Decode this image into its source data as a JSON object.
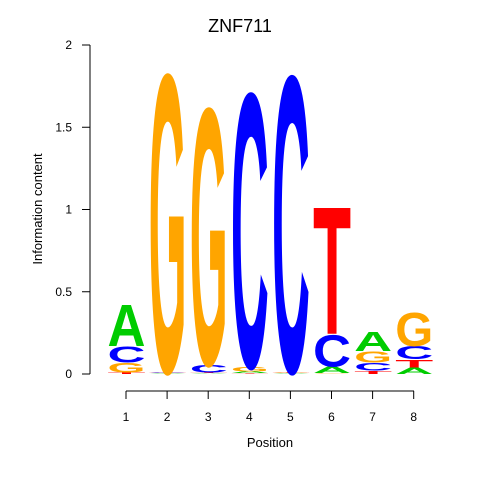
{
  "chart_data": {
    "type": "sequence-logo",
    "title": "ZNF711",
    "xlabel": "Position",
    "ylabel": "Information content",
    "ylim": [
      0,
      2
    ],
    "y_ticks": [
      "0",
      "0.5",
      "1",
      "1.5",
      "2"
    ],
    "x_ticks": [
      "1",
      "2",
      "3",
      "4",
      "5",
      "6",
      "7",
      "8"
    ],
    "colors": {
      "A": "#00cc00",
      "C": "#0000ff",
      "G": "#ffa500",
      "T": "#ff0000"
    },
    "positions": [
      {
        "position": "1",
        "letters": [
          {
            "base": "T",
            "height": 0.01
          },
          {
            "base": "G",
            "height": 0.06
          },
          {
            "base": "C",
            "height": 0.1
          },
          {
            "base": "A",
            "height": 0.26
          }
        ]
      },
      {
        "position": "2",
        "letters": [
          {
            "base": "A",
            "height": 0.005
          },
          {
            "base": "C",
            "height": 0.005
          },
          {
            "base": "T",
            "height": 0.005
          },
          {
            "base": "G",
            "height": 1.87
          }
        ]
      },
      {
        "position": "3",
        "letters": [
          {
            "base": "A",
            "height": 0.005
          },
          {
            "base": "T",
            "height": 0.005
          },
          {
            "base": "C",
            "height": 0.05
          },
          {
            "base": "G",
            "height": 1.61
          }
        ]
      },
      {
        "position": "4",
        "letters": [
          {
            "base": "T",
            "height": 0.005
          },
          {
            "base": "A",
            "height": 0.01
          },
          {
            "base": "G",
            "height": 0.03
          },
          {
            "base": "C",
            "height": 1.72
          }
        ]
      },
      {
        "position": "5",
        "letters": [
          {
            "base": "A",
            "height": 0.005
          },
          {
            "base": "T",
            "height": 0.005
          },
          {
            "base": "G",
            "height": 0.005
          },
          {
            "base": "C",
            "height": 1.86
          }
        ]
      },
      {
        "position": "6",
        "letters": [
          {
            "base": "G",
            "height": 0.005
          },
          {
            "base": "A",
            "height": 0.04
          },
          {
            "base": "C",
            "height": 0.2
          },
          {
            "base": "T",
            "height": 0.8
          }
        ]
      },
      {
        "position": "7",
        "letters": [
          {
            "base": "T",
            "height": 0.02
          },
          {
            "base": "C",
            "height": 0.05
          },
          {
            "base": "G",
            "height": 0.07
          },
          {
            "base": "A",
            "height": 0.12
          }
        ]
      },
      {
        "position": "8",
        "letters": [
          {
            "base": "A",
            "height": 0.04
          },
          {
            "base": "T",
            "height": 0.05
          },
          {
            "base": "C",
            "height": 0.08
          },
          {
            "base": "G",
            "height": 0.21
          }
        ]
      }
    ]
  }
}
